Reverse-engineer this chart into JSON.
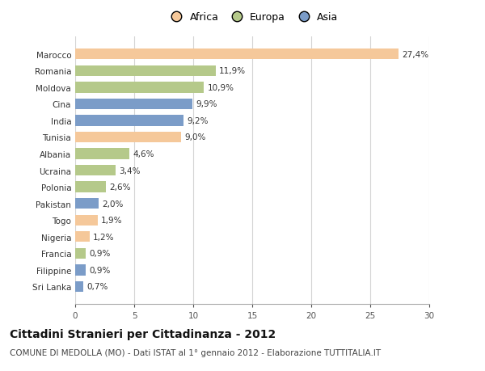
{
  "countries": [
    "Marocco",
    "Romania",
    "Moldova",
    "Cina",
    "India",
    "Tunisia",
    "Albania",
    "Ucraina",
    "Polonia",
    "Pakistan",
    "Togo",
    "Nigeria",
    "Francia",
    "Filippine",
    "Sri Lanka"
  ],
  "values": [
    27.4,
    11.9,
    10.9,
    9.9,
    9.2,
    9.0,
    4.6,
    3.4,
    2.6,
    2.0,
    1.9,
    1.2,
    0.9,
    0.9,
    0.7
  ],
  "labels": [
    "27,4%",
    "11,9%",
    "10,9%",
    "9,9%",
    "9,2%",
    "9,0%",
    "4,6%",
    "3,4%",
    "2,6%",
    "2,0%",
    "1,9%",
    "1,2%",
    "0,9%",
    "0,9%",
    "0,7%"
  ],
  "continents": [
    "Africa",
    "Europa",
    "Europa",
    "Asia",
    "Asia",
    "Africa",
    "Europa",
    "Europa",
    "Europa",
    "Asia",
    "Africa",
    "Africa",
    "Europa",
    "Asia",
    "Asia"
  ],
  "colors": {
    "Africa": "#F5C89A",
    "Europa": "#B5C98A",
    "Asia": "#7B9CC8"
  },
  "xlim": [
    0,
    30
  ],
  "xticks": [
    0,
    5,
    10,
    15,
    20,
    25,
    30
  ],
  "title": "Cittadini Stranieri per Cittadinanza - 2012",
  "subtitle": "COMUNE DI MEDOLLA (MO) - Dati ISTAT al 1° gennaio 2012 - Elaborazione TUTTITALIA.IT",
  "bg_color": "#ffffff",
  "grid_color": "#d5d5d5",
  "bar_height": 0.65,
  "title_fontsize": 10,
  "subtitle_fontsize": 7.5,
  "label_fontsize": 7.5,
  "tick_fontsize": 7.5,
  "legend_fontsize": 9
}
